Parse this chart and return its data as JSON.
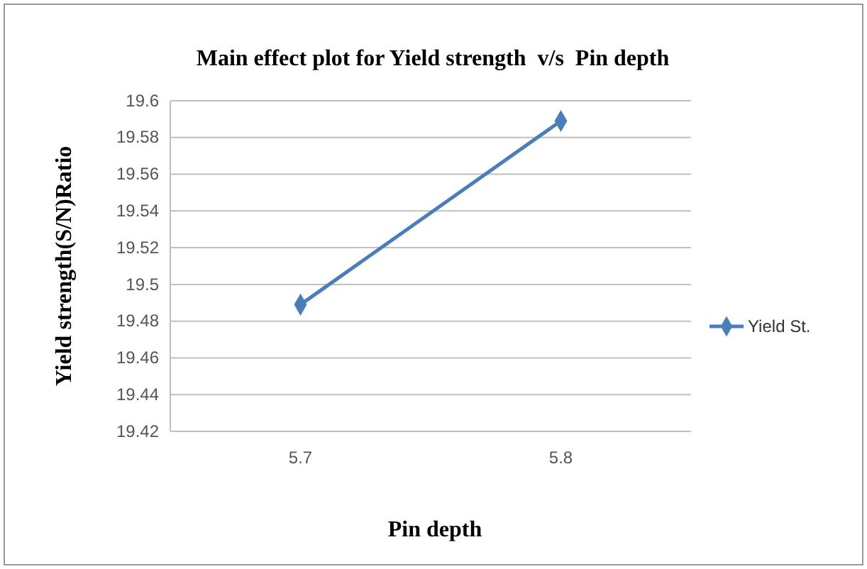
{
  "chart_data": {
    "type": "line",
    "title": "Main effect plot for Yield strength  v/s  Pin depth",
    "xlabel": "Pin depth",
    "ylabel": "Yield strength(S/N)Ratio",
    "categories": [
      "5.7",
      "5.8"
    ],
    "series": [
      {
        "name": "Yield St.",
        "color": "#4a7ebb",
        "values": [
          19.489,
          19.589
        ]
      }
    ],
    "ylim": [
      19.42,
      19.6
    ],
    "yticks": [
      19.42,
      19.44,
      19.46,
      19.48,
      19.5,
      19.52,
      19.54,
      19.56,
      19.58,
      19.6
    ],
    "grid": "y",
    "legend": "right",
    "marker": "diamond",
    "line_style": "solid"
  }
}
